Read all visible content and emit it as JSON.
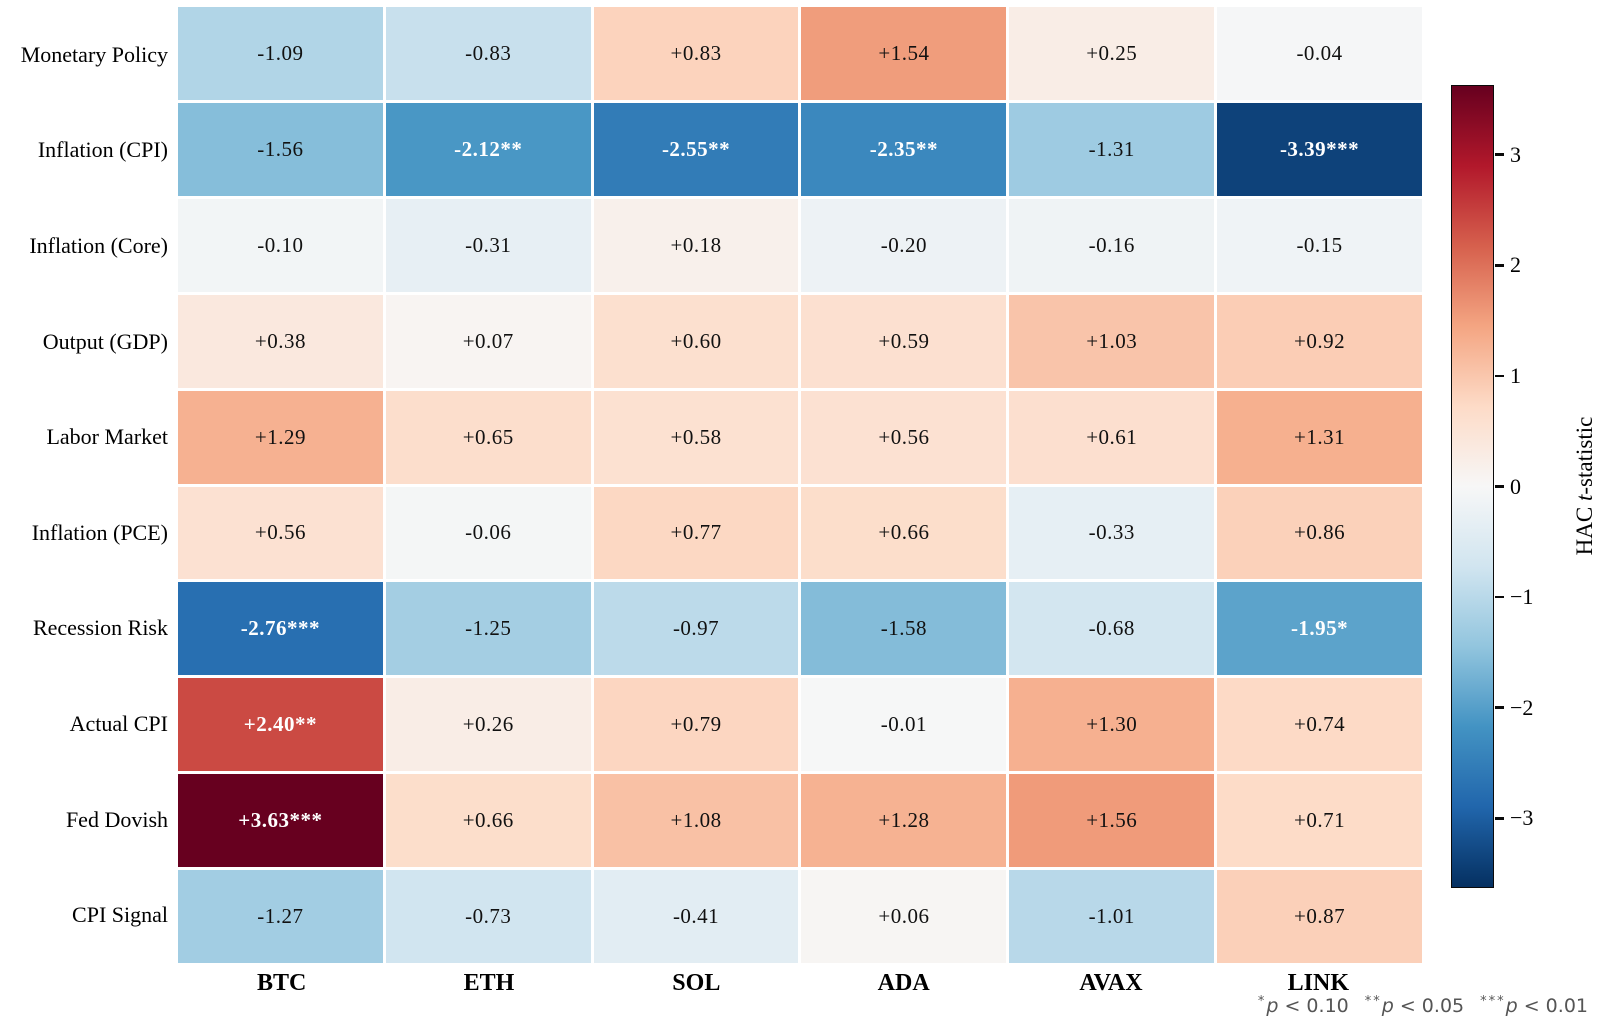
{
  "chart_data": {
    "type": "heatmap",
    "title": "",
    "rows": [
      "Monetary Policy",
      "Inflation (CPI)",
      "Inflation (Core)",
      "Output (GDP)",
      "Labor Market",
      "Inflation (PCE)",
      "Recession Risk",
      "Actual CPI",
      "Fed Dovish",
      "CPI Signal"
    ],
    "columns": [
      "BTC",
      "ETH",
      "SOL",
      "ADA",
      "AVAX",
      "LINK"
    ],
    "cells_display": [
      [
        "-1.09",
        "-0.83",
        "+0.83",
        "+1.54",
        "+0.25",
        "-0.04"
      ],
      [
        "-1.56",
        "-2.12**",
        "-2.55**",
        "-2.35**",
        "-1.31",
        "-3.39***"
      ],
      [
        "-0.10",
        "-0.31",
        "+0.18",
        "-0.20",
        "-0.16",
        "-0.15"
      ],
      [
        "+0.38",
        "+0.07",
        "+0.60",
        "+0.59",
        "+1.03",
        "+0.92"
      ],
      [
        "+1.29",
        "+0.65",
        "+0.58",
        "+0.56",
        "+0.61",
        "+1.31"
      ],
      [
        "+0.56",
        "-0.06",
        "+0.77",
        "+0.66",
        "-0.33",
        "+0.86"
      ],
      [
        "-2.76***",
        "-1.25",
        "-0.97",
        "-1.58",
        "-0.68",
        "-1.95*"
      ],
      [
        "+2.40**",
        "+0.26",
        "+0.79",
        "-0.01",
        "+1.30",
        "+0.74"
      ],
      [
        "+3.63***",
        "+0.66",
        "+1.08",
        "+1.28",
        "+1.56",
        "+0.71"
      ],
      [
        "-1.27",
        "-0.73",
        "-0.41",
        "+0.06",
        "-1.01",
        "+0.87"
      ]
    ],
    "values": [
      [
        -1.09,
        -0.83,
        0.83,
        1.54,
        0.25,
        -0.04
      ],
      [
        -1.56,
        -2.12,
        -2.55,
        -2.35,
        -1.31,
        -3.39
      ],
      [
        -0.1,
        -0.31,
        0.18,
        -0.2,
        -0.16,
        -0.15
      ],
      [
        0.38,
        0.07,
        0.6,
        0.59,
        1.03,
        0.92
      ],
      [
        1.29,
        0.65,
        0.58,
        0.56,
        0.61,
        1.31
      ],
      [
        0.56,
        -0.06,
        0.77,
        0.66,
        -0.33,
        0.86
      ],
      [
        -2.76,
        -1.25,
        -0.97,
        -1.58,
        -0.68,
        -1.95
      ],
      [
        2.4,
        0.26,
        0.79,
        -0.01,
        1.3,
        0.74
      ],
      [
        3.63,
        0.66,
        1.08,
        1.28,
        1.56,
        0.71
      ],
      [
        -1.27,
        -0.73,
        -0.41,
        0.06,
        -1.01,
        0.87
      ]
    ],
    "colorbar": {
      "label_prefix": "HAC ",
      "label_italic": "t",
      "label_suffix": "-statistic",
      "vmin": -3.63,
      "vmax": 3.63,
      "colormap_name": "RdBu_r",
      "colormap_anchors_top_to_bottom": [
        "#67001f",
        "#b2182b",
        "#d6604d",
        "#f4a582",
        "#fddbc7",
        "#f7f7f7",
        "#d1e5f0",
        "#92c5de",
        "#4393c3",
        "#2166ac",
        "#053061"
      ],
      "ticks": [
        {
          "value": 3,
          "label": "3"
        },
        {
          "value": 2,
          "label": "2"
        },
        {
          "value": 1,
          "label": "1"
        },
        {
          "value": 0,
          "label": "0"
        },
        {
          "value": -1,
          "label": "−1"
        },
        {
          "value": -2,
          "label": "−2"
        },
        {
          "value": -3,
          "label": "−3"
        }
      ]
    },
    "significance_footnote": [
      {
        "stars": "*",
        "text": "p < 0.10"
      },
      {
        "stars": "**",
        "text": "p < 0.05"
      },
      {
        "stars": "***",
        "text": "p < 0.01"
      }
    ],
    "colors": {
      "significant_cell_text": "#ffffff",
      "normal_cell_text": "#111111",
      "footnote_text": "#555555",
      "grid_gap": "#ffffff"
    },
    "layout": {
      "legend_position": "right-colorbar",
      "grid": "white cell separators",
      "xlabels_position": "bottom",
      "ylabels_position": "left"
    }
  }
}
